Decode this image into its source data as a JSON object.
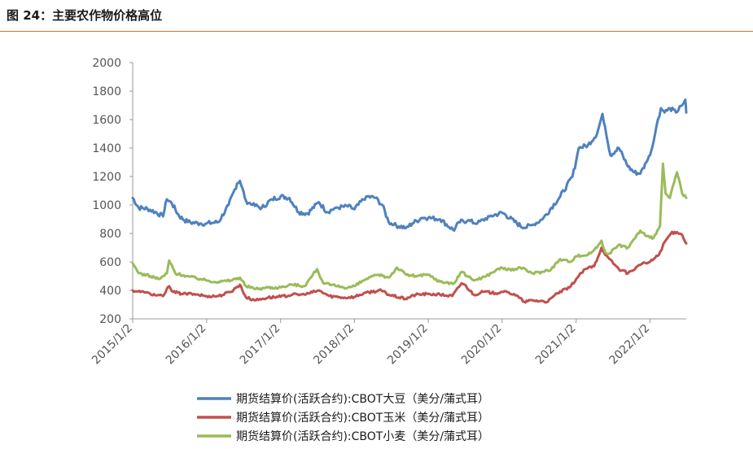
{
  "figure_title": "图 24：主要农作物价格高位",
  "colors": {
    "accent_rule": "#c8742c",
    "axis": "#9a9a9a",
    "soybean": "#4f81bd",
    "corn": "#c0504d",
    "wheat": "#9bbb59"
  },
  "chart_data": {
    "type": "line",
    "title": "",
    "xlabel": "",
    "ylabel": "",
    "ylim": [
      200,
      2000
    ],
    "yticks": [
      200,
      400,
      600,
      800,
      1000,
      1200,
      1400,
      1600,
      1800,
      2000
    ],
    "xlim": [
      "2015-01-02",
      "2022-06-30"
    ],
    "xticks": [
      "2015/1/2",
      "2016/1/2",
      "2017/1/2",
      "2018/1/2",
      "2019/1/2",
      "2020/1/2",
      "2021/1/2",
      "2022/1/2"
    ],
    "grid": false,
    "legend_position": "bottom",
    "series": [
      {
        "name": "期货结算价(活跃合约):CBOT大豆（美分/蒲式耳）",
        "color": "#4f81bd",
        "points": [
          [
            "2015-01-02",
            1050
          ],
          [
            "2015-02-01",
            980
          ],
          [
            "2015-03-15",
            975
          ],
          [
            "2015-05-01",
            945
          ],
          [
            "2015-06-01",
            920
          ],
          [
            "2015-06-20",
            1040
          ],
          [
            "2015-07-15",
            1010
          ],
          [
            "2015-08-20",
            920
          ],
          [
            "2015-10-01",
            880
          ],
          [
            "2015-12-01",
            870
          ],
          [
            "2016-01-02",
            870
          ],
          [
            "2016-03-01",
            880
          ],
          [
            "2016-04-20",
            1000
          ],
          [
            "2016-06-01",
            1150
          ],
          [
            "2016-06-15",
            1170
          ],
          [
            "2016-07-15",
            1030
          ],
          [
            "2016-08-15",
            1000
          ],
          [
            "2016-10-01",
            980
          ],
          [
            "2016-11-20",
            1040
          ],
          [
            "2017-01-02",
            1060
          ],
          [
            "2017-02-15",
            1050
          ],
          [
            "2017-04-01",
            950
          ],
          [
            "2017-05-15",
            940
          ],
          [
            "2017-07-10",
            1020
          ],
          [
            "2017-08-20",
            950
          ],
          [
            "2017-10-01",
            980
          ],
          [
            "2017-12-01",
            990
          ],
          [
            "2018-01-02",
            970
          ],
          [
            "2018-03-01",
            1060
          ],
          [
            "2018-04-15",
            1050
          ],
          [
            "2018-05-20",
            1000
          ],
          [
            "2018-06-20",
            880
          ],
          [
            "2018-07-15",
            860
          ],
          [
            "2018-09-15",
            840
          ],
          [
            "2018-10-15",
            870
          ],
          [
            "2018-12-01",
            910
          ],
          [
            "2019-01-02",
            910
          ],
          [
            "2019-03-01",
            900
          ],
          [
            "2019-05-10",
            820
          ],
          [
            "2019-06-01",
            880
          ],
          [
            "2019-07-15",
            890
          ],
          [
            "2019-09-01",
            870
          ],
          [
            "2019-11-01",
            920
          ],
          [
            "2020-01-02",
            945
          ],
          [
            "2020-01-20",
            930
          ],
          [
            "2020-03-15",
            870
          ],
          [
            "2020-04-20",
            840
          ],
          [
            "2020-06-01",
            860
          ],
          [
            "2020-07-20",
            900
          ],
          [
            "2020-09-01",
            980
          ],
          [
            "2020-10-15",
            1060
          ],
          [
            "2020-12-15",
            1200
          ],
          [
            "2021-01-02",
            1310
          ],
          [
            "2021-01-15",
            1400
          ],
          [
            "2021-03-01",
            1420
          ],
          [
            "2021-04-15",
            1500
          ],
          [
            "2021-05-12",
            1640
          ],
          [
            "2021-05-25",
            1550
          ],
          [
            "2021-06-20",
            1350
          ],
          [
            "2021-08-01",
            1400
          ],
          [
            "2021-09-15",
            1270
          ],
          [
            "2021-10-15",
            1230
          ],
          [
            "2021-11-15",
            1220
          ],
          [
            "2021-12-15",
            1300
          ],
          [
            "2022-01-02",
            1350
          ],
          [
            "2022-01-20",
            1450
          ],
          [
            "2022-02-10",
            1600
          ],
          [
            "2022-02-25",
            1680
          ],
          [
            "2022-03-15",
            1650
          ],
          [
            "2022-04-10",
            1680
          ],
          [
            "2022-05-10",
            1650
          ],
          [
            "2022-06-10",
            1700
          ],
          [
            "2022-06-25",
            1740
          ],
          [
            "2022-06-30",
            1650
          ]
        ]
      },
      {
        "name": "期货结算价(活跃合约):CBOT玉米（美分/蒲式耳）",
        "color": "#c0504d",
        "points": [
          [
            "2015-01-02",
            400
          ],
          [
            "2015-03-01",
            385
          ],
          [
            "2015-05-01",
            365
          ],
          [
            "2015-06-01",
            360
          ],
          [
            "2015-07-01",
            430
          ],
          [
            "2015-07-20",
            390
          ],
          [
            "2015-09-01",
            375
          ],
          [
            "2015-11-01",
            375
          ],
          [
            "2016-01-02",
            360
          ],
          [
            "2016-03-01",
            360
          ],
          [
            "2016-05-01",
            390
          ],
          [
            "2016-06-15",
            440
          ],
          [
            "2016-07-15",
            350
          ],
          [
            "2016-09-01",
            330
          ],
          [
            "2016-11-01",
            350
          ],
          [
            "2017-01-02",
            355
          ],
          [
            "2017-03-01",
            370
          ],
          [
            "2017-05-01",
            370
          ],
          [
            "2017-07-10",
            400
          ],
          [
            "2017-09-01",
            360
          ],
          [
            "2017-11-15",
            350
          ],
          [
            "2018-01-02",
            355
          ],
          [
            "2018-03-01",
            385
          ],
          [
            "2018-05-15",
            400
          ],
          [
            "2018-06-20",
            370
          ],
          [
            "2018-09-10",
            340
          ],
          [
            "2018-11-01",
            370
          ],
          [
            "2019-01-02",
            375
          ],
          [
            "2019-03-01",
            370
          ],
          [
            "2019-05-01",
            360
          ],
          [
            "2019-06-15",
            450
          ],
          [
            "2019-07-01",
            440
          ],
          [
            "2019-08-15",
            370
          ],
          [
            "2019-10-01",
            390
          ],
          [
            "2019-12-01",
            380
          ],
          [
            "2020-01-02",
            390
          ],
          [
            "2020-03-01",
            375
          ],
          [
            "2020-04-20",
            320
          ],
          [
            "2020-06-01",
            330
          ],
          [
            "2020-08-15",
            320
          ],
          [
            "2020-10-01",
            380
          ],
          [
            "2020-12-01",
            420
          ],
          [
            "2021-01-02",
            480
          ],
          [
            "2021-02-15",
            550
          ],
          [
            "2021-04-01",
            570
          ],
          [
            "2021-05-07",
            700
          ],
          [
            "2021-05-25",
            650
          ],
          [
            "2021-06-15",
            620
          ],
          [
            "2021-08-01",
            550
          ],
          [
            "2021-09-15",
            520
          ],
          [
            "2021-11-15",
            580
          ],
          [
            "2022-01-02",
            600
          ],
          [
            "2022-02-15",
            650
          ],
          [
            "2022-03-15",
            740
          ],
          [
            "2022-04-15",
            800
          ],
          [
            "2022-05-15",
            810
          ],
          [
            "2022-06-10",
            790
          ],
          [
            "2022-06-30",
            730
          ]
        ]
      },
      {
        "name": "期货结算价(活跃合约):CBOT小麦（美分/蒲式耳）",
        "color": "#9bbb59",
        "points": [
          [
            "2015-01-02",
            590
          ],
          [
            "2015-02-01",
            520
          ],
          [
            "2015-04-01",
            500
          ],
          [
            "2015-05-15",
            480
          ],
          [
            "2015-06-20",
            520
          ],
          [
            "2015-07-01",
            610
          ],
          [
            "2015-08-01",
            520
          ],
          [
            "2015-10-01",
            500
          ],
          [
            "2015-12-01",
            480
          ],
          [
            "2016-01-02",
            470
          ],
          [
            "2016-03-01",
            460
          ],
          [
            "2016-05-01",
            470
          ],
          [
            "2016-06-15",
            490
          ],
          [
            "2016-07-15",
            430
          ],
          [
            "2016-09-01",
            410
          ],
          [
            "2016-11-01",
            420
          ],
          [
            "2017-01-02",
            420
          ],
          [
            "2017-03-01",
            440
          ],
          [
            "2017-05-01",
            430
          ],
          [
            "2017-07-01",
            550
          ],
          [
            "2017-08-01",
            450
          ],
          [
            "2017-10-01",
            430
          ],
          [
            "2017-12-01",
            420
          ],
          [
            "2018-01-02",
            430
          ],
          [
            "2018-03-01",
            480
          ],
          [
            "2018-05-01",
            510
          ],
          [
            "2018-06-20",
            490
          ],
          [
            "2018-08-01",
            560
          ],
          [
            "2018-09-15",
            510
          ],
          [
            "2018-11-01",
            500
          ],
          [
            "2019-01-02",
            510
          ],
          [
            "2019-03-01",
            460
          ],
          [
            "2019-05-10",
            450
          ],
          [
            "2019-06-15",
            530
          ],
          [
            "2019-08-15",
            470
          ],
          [
            "2019-10-15",
            500
          ],
          [
            "2019-12-01",
            540
          ],
          [
            "2020-01-02",
            560
          ],
          [
            "2020-02-15",
            540
          ],
          [
            "2020-04-01",
            560
          ],
          [
            "2020-06-01",
            520
          ],
          [
            "2020-07-15",
            530
          ],
          [
            "2020-09-01",
            550
          ],
          [
            "2020-10-15",
            620
          ],
          [
            "2020-12-01",
            600
          ],
          [
            "2021-01-02",
            640
          ],
          [
            "2021-03-01",
            650
          ],
          [
            "2021-04-15",
            700
          ],
          [
            "2021-05-07",
            750
          ],
          [
            "2021-05-25",
            670
          ],
          [
            "2021-06-15",
            660
          ],
          [
            "2021-08-01",
            720
          ],
          [
            "2021-09-15",
            700
          ],
          [
            "2021-10-15",
            760
          ],
          [
            "2021-11-15",
            820
          ],
          [
            "2021-12-15",
            780
          ],
          [
            "2022-01-02",
            770
          ],
          [
            "2022-01-20",
            770
          ],
          [
            "2022-02-20",
            850
          ],
          [
            "2022-03-07",
            1290
          ],
          [
            "2022-03-20",
            1080
          ],
          [
            "2022-04-10",
            1050
          ],
          [
            "2022-05-15",
            1230
          ],
          [
            "2022-05-25",
            1180
          ],
          [
            "2022-06-10",
            1080
          ],
          [
            "2022-06-30",
            1050
          ]
        ]
      }
    ]
  }
}
